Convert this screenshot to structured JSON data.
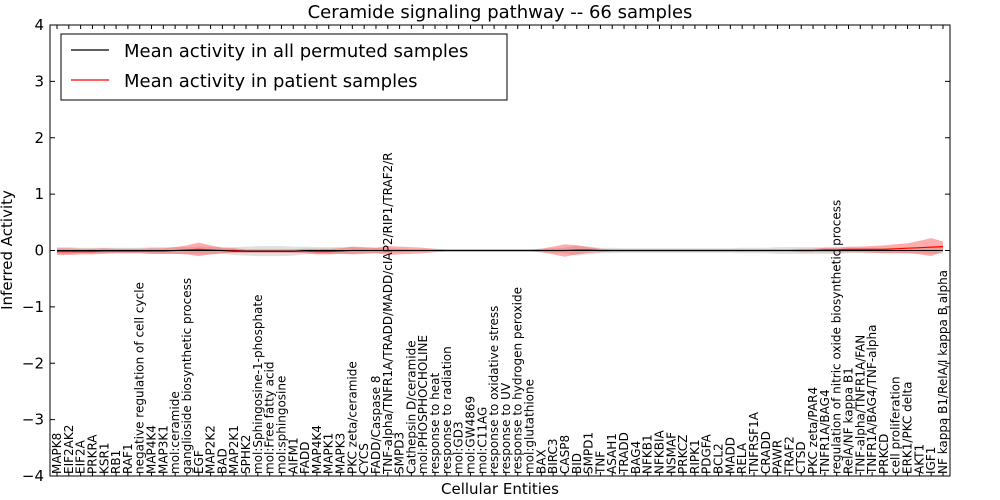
{
  "chart_data": {
    "type": "line",
    "title": "Ceramide signaling pathway -- 66 samples",
    "xlabel": "Cellular Entities",
    "ylabel": "Inferred Activity",
    "ylim": [
      -4,
      4
    ],
    "yticks": [
      "−4",
      "−3",
      "−2",
      "−1",
      "0",
      "1",
      "2",
      "3",
      "4"
    ],
    "ytick_values": [
      -4,
      -3,
      -2,
      -1,
      0,
      1,
      2,
      3,
      4
    ],
    "legend": {
      "position": "top-left",
      "entries": [
        {
          "label": "Mean activity in all permuted samples",
          "color": "#000000"
        },
        {
          "label": "Mean activity in patient samples",
          "color": "#ff0000"
        }
      ]
    },
    "categories": [
      "MAPK8",
      "EIF2AK2",
      "EIF2A",
      "PRKRA",
      "KSR1",
      "RB1",
      "RAF1",
      "negative regulation of cell cycle",
      "MAP4K4",
      "MAP3K1",
      "mol:ceramide",
      "ganglioside biosynthetic process",
      "EGF",
      "MAP2K2",
      "BAD",
      "MAP2K1",
      "SPHK2",
      "mol:Sphingosine-1-phosphate",
      "mol:Free fatty acid",
      "mol:sphingosine",
      "AIFM1",
      "FADD",
      "MAP4K4",
      "MAPK1",
      "MAPK3",
      "PKC zeta/ceramide",
      "CYCS",
      "FADD/Caspase 8",
      "TNF-alpha/TNFR1A/TRADD/MADD/cIAP2/RIP1/TRAF2/R",
      "SMPD3",
      "Cathepsin D/ceramide",
      "mol:PHOSPHOCHOLINE",
      "response to heat",
      "response to radiation",
      "mol:GD3",
      "mol:GW4869",
      "mol:C11AG",
      "response to oxidative stress",
      "response to UV",
      "response to hydrogen peroxide",
      "mol:glutathione",
      "BAX",
      "BIRC3",
      "CASP8",
      "BID",
      "SMPD1",
      "TNF",
      "ASAH1",
      "TRADD",
      "BAG4",
      "NFKB1",
      "NFKBIA",
      "NSMAF",
      "PRKCZ",
      "RIPK1",
      "PDGFA",
      "BCL2",
      "MADD",
      "RELA",
      "TNFRSF1A",
      "CRADD",
      "PAWR",
      "TRAF2",
      "CTSD",
      "PKC zeta/PAR4",
      "TNFR1A/BAG4",
      "regulation of nitric oxide biosynthetic process",
      "RelA/NF kappa B1",
      "TNF-alpha/TNFR1A/FAN",
      "TNFR1A/BAG4/TNF-alpha",
      "PRKCD",
      "cell proliferation",
      "ERK1/PKC delta",
      "AKT1",
      "IGF1",
      "NF kappa B1/RelA/I kappa B alpha"
    ],
    "series": [
      {
        "name": "Mean activity in all permuted samples",
        "color": "#000000",
        "values": [
          0.0,
          0.0,
          0.0,
          0.0,
          0.0,
          0.0,
          0.0,
          0.0,
          0.0,
          0.0,
          0.0,
          0.0,
          0.0,
          0.0,
          0.0,
          -0.01,
          -0.01,
          -0.01,
          -0.01,
          -0.01,
          -0.01,
          0.0,
          0.0,
          0.0,
          0.0,
          0.0,
          0.0,
          0.0,
          0.0,
          0.0,
          0.0,
          0.0,
          0.0,
          0.0,
          0.0,
          0.0,
          0.0,
          0.0,
          0.0,
          0.0,
          0.0,
          0.0,
          0.0,
          0.0,
          0.0,
          0.0,
          0.0,
          0.0,
          0.0,
          0.0,
          0.0,
          0.0,
          0.0,
          0.0,
          0.0,
          0.0,
          0.0,
          0.0,
          0.0,
          0.0,
          0.0,
          0.0,
          0.0,
          0.0,
          0.0,
          0.0,
          0.0,
          0.0,
          0.0,
          0.0,
          0.0,
          0.0,
          0.0,
          0.0,
          0.0,
          0.0
        ],
        "band": [
          0.06,
          0.06,
          0.05,
          0.05,
          0.05,
          0.05,
          0.05,
          0.05,
          0.06,
          0.06,
          0.06,
          0.06,
          0.07,
          0.07,
          0.06,
          0.07,
          0.08,
          0.09,
          0.09,
          0.09,
          0.08,
          0.07,
          0.06,
          0.06,
          0.06,
          0.06,
          0.05,
          0.05,
          0.04,
          0.03,
          0.02,
          0.02,
          0.02,
          0.02,
          0.02,
          0.02,
          0.02,
          0.02,
          0.02,
          0.02,
          0.02,
          0.03,
          0.04,
          0.05,
          0.09,
          0.07,
          0.05,
          0.05,
          0.04,
          0.04,
          0.04,
          0.04,
          0.04,
          0.04,
          0.04,
          0.04,
          0.04,
          0.04,
          0.05,
          0.05,
          0.05,
          0.06,
          0.06,
          0.06,
          0.06,
          0.06,
          0.06,
          0.05,
          0.05,
          0.05,
          0.05,
          0.05,
          0.05,
          0.05,
          0.06,
          0.06
        ]
      },
      {
        "name": "Mean activity in patient samples",
        "color": "#ff0000",
        "values": [
          -0.02,
          -0.02,
          -0.02,
          -0.02,
          -0.01,
          -0.01,
          -0.01,
          -0.01,
          -0.01,
          -0.01,
          0.0,
          0.01,
          0.02,
          0.01,
          0.0,
          0.0,
          -0.01,
          -0.01,
          -0.01,
          -0.01,
          -0.01,
          -0.01,
          -0.02,
          -0.02,
          -0.01,
          0.0,
          0.0,
          0.0,
          0.0,
          0.0,
          0.0,
          0.0,
          0.0,
          0.0,
          0.0,
          0.0,
          0.0,
          0.0,
          0.0,
          0.0,
          0.0,
          0.0,
          0.0,
          0.0,
          0.01,
          0.01,
          0.0,
          0.0,
          0.0,
          0.0,
          0.0,
          0.0,
          0.0,
          0.0,
          0.0,
          0.0,
          0.0,
          0.0,
          0.0,
          0.0,
          0.0,
          0.0,
          0.0,
          0.0,
          0.0,
          0.01,
          0.01,
          0.02,
          0.02,
          0.02,
          0.02,
          0.03,
          0.04,
          0.05,
          0.06,
          0.07
        ],
        "band": [
          0.06,
          0.06,
          0.05,
          0.05,
          0.05,
          0.04,
          0.04,
          0.04,
          0.05,
          0.05,
          0.06,
          0.08,
          0.12,
          0.08,
          0.05,
          0.04,
          0.03,
          0.03,
          0.03,
          0.03,
          0.03,
          0.04,
          0.05,
          0.05,
          0.05,
          0.07,
          0.06,
          0.05,
          0.08,
          0.07,
          0.06,
          0.05,
          0.03,
          0.02,
          0.02,
          0.02,
          0.02,
          0.02,
          0.02,
          0.02,
          0.02,
          0.03,
          0.07,
          0.11,
          0.08,
          0.05,
          0.03,
          0.02,
          0.02,
          0.02,
          0.02,
          0.02,
          0.02,
          0.02,
          0.02,
          0.02,
          0.02,
          0.02,
          0.02,
          0.02,
          0.02,
          0.02,
          0.02,
          0.03,
          0.03,
          0.04,
          0.04,
          0.05,
          0.05,
          0.06,
          0.07,
          0.08,
          0.09,
          0.12,
          0.16,
          0.09
        ]
      }
    ]
  }
}
